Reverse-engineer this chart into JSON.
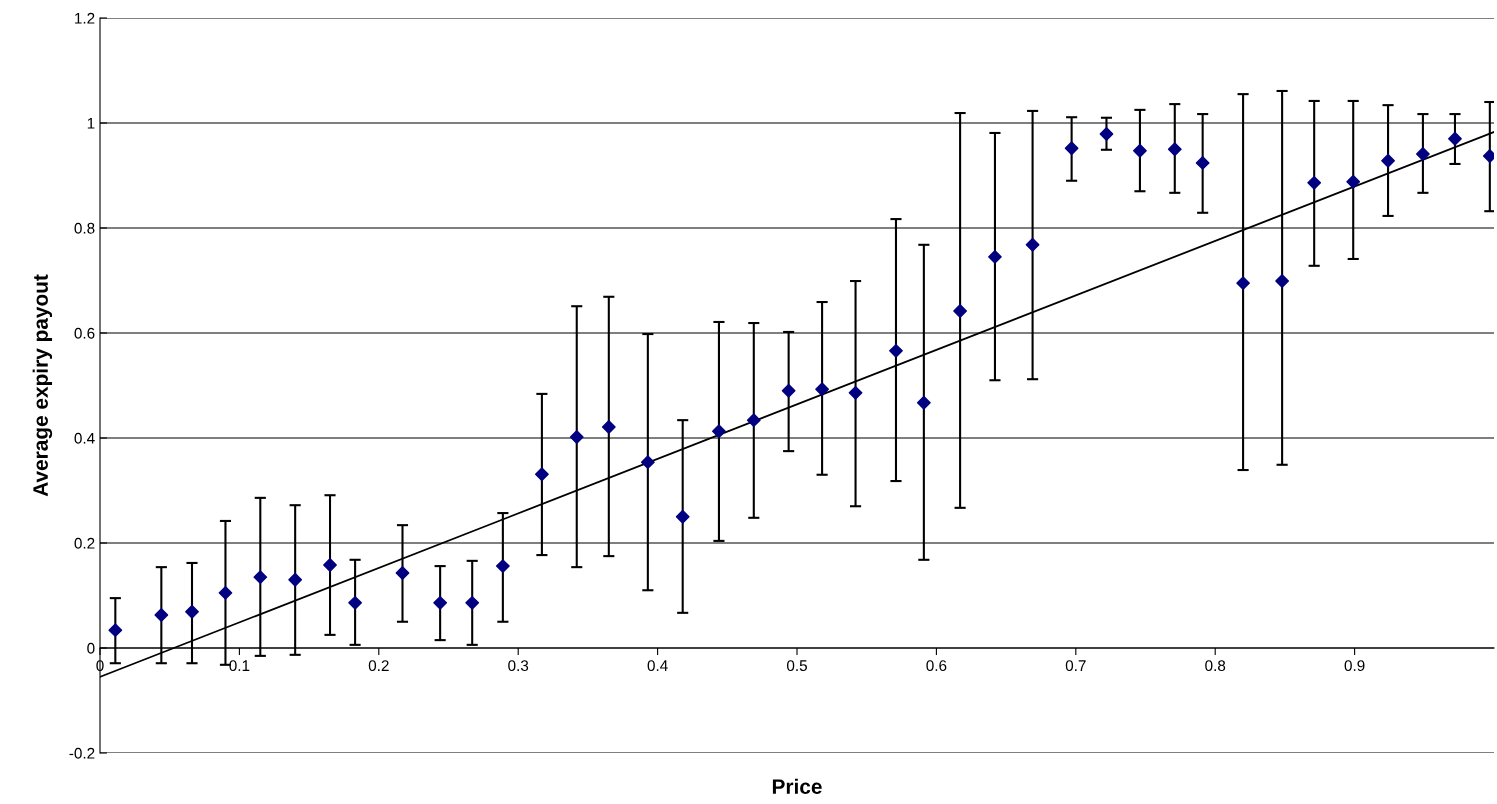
{
  "chart_data": {
    "type": "scatter",
    "xlabel": "Price",
    "ylabel": "Average expiry payout",
    "xlim": [
      0,
      1
    ],
    "ylim": [
      -0.2,
      1.2
    ],
    "xticks": [
      0,
      0.1,
      0.2,
      0.3,
      0.4,
      0.5,
      0.6,
      0.7,
      0.8,
      0.9
    ],
    "yticks": [
      -0.2,
      0,
      0.2,
      0.4,
      0.6,
      0.8,
      1,
      1.2
    ],
    "grid": "y",
    "marker": "diamond",
    "series": [
      {
        "color": "#000080",
        "x": [
          0.011,
          0.044,
          0.066,
          0.09,
          0.115,
          0.14,
          0.165,
          0.183,
          0.217,
          0.244,
          0.267,
          0.289,
          0.317,
          0.342,
          0.365,
          0.393,
          0.418,
          0.444,
          0.469,
          0.494,
          0.518,
          0.542,
          0.571,
          0.591,
          0.617,
          0.642,
          0.669,
          0.697,
          0.722,
          0.746,
          0.771,
          0.791,
          0.82,
          0.848,
          0.871,
          0.899,
          0.924,
          0.949,
          0.972,
          0.997
        ],
        "values": [
          0.034,
          0.063,
          0.069,
          0.105,
          0.135,
          0.13,
          0.158,
          0.086,
          0.143,
          0.086,
          0.086,
          0.156,
          0.331,
          0.402,
          0.421,
          0.354,
          0.25,
          0.413,
          0.434,
          0.49,
          0.493,
          0.486,
          0.566,
          0.467,
          0.642,
          0.745,
          0.768,
          0.952,
          0.979,
          0.947,
          0.95,
          0.924,
          0.695,
          0.699,
          0.886,
          0.888,
          0.928,
          0.941,
          0.97,
          0.937
        ],
        "errors": [
          [
            -0.029,
            0.095
          ],
          [
            -0.029,
            0.154
          ],
          [
            -0.029,
            0.162
          ],
          [
            -0.032,
            0.242
          ],
          [
            -0.015,
            0.286
          ],
          [
            -0.013,
            0.272
          ],
          [
            0.025,
            0.291
          ],
          [
            0.006,
            0.168
          ],
          [
            0.05,
            0.234
          ],
          [
            0.015,
            0.156
          ],
          [
            0.006,
            0.166
          ],
          [
            0.05,
            0.257
          ],
          [
            0.177,
            0.484
          ],
          [
            0.154,
            0.651
          ],
          [
            0.175,
            0.669
          ],
          [
            0.11,
            0.598
          ],
          [
            0.067,
            0.434
          ],
          [
            0.204,
            0.621
          ],
          [
            0.248,
            0.619
          ],
          [
            0.375,
            0.602
          ],
          [
            0.33,
            0.659
          ],
          [
            0.27,
            0.699
          ],
          [
            0.318,
            0.817
          ],
          [
            0.168,
            0.768
          ],
          [
            0.267,
            1.019
          ],
          [
            0.51,
            0.981
          ],
          [
            0.512,
            1.023
          ],
          [
            0.89,
            1.011
          ],
          [
            0.949,
            1.01
          ],
          [
            0.87,
            1.025
          ],
          [
            0.867,
            1.036
          ],
          [
            0.829,
            1.017
          ],
          [
            0.339,
            1.055
          ],
          [
            0.349,
            1.061
          ],
          [
            0.728,
            1.042
          ],
          [
            0.741,
            1.042
          ],
          [
            0.823,
            1.034
          ],
          [
            0.867,
            1.017
          ],
          [
            0.922,
            1.017
          ],
          [
            0.832,
            1.04
          ]
        ]
      },
      {
        "type": "line",
        "color": "#000000",
        "x": [
          0,
          1
        ],
        "values": [
          -0.055,
          0.983
        ],
        "marker": "none"
      }
    ]
  }
}
